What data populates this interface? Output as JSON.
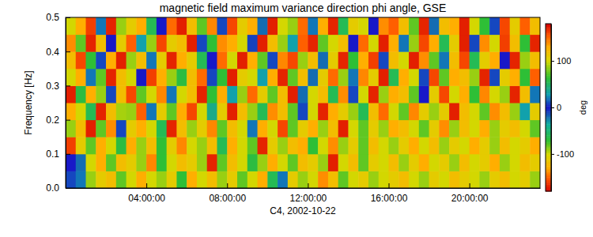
{
  "chart_data": {
    "type": "heatmap",
    "title": "magnetic field maximum variance direction phi angle, GSE",
    "x_label": "C4, 2002-10-22",
    "y_label": "Frequency [Hz]",
    "xlim": [
      0,
      23.5
    ],
    "xticks": [
      {
        "value": 4,
        "label": "04:00:00"
      },
      {
        "value": 8,
        "label": "08:00:00"
      },
      {
        "value": 12,
        "label": "12:00:00"
      },
      {
        "value": 16,
        "label": "16:00:00"
      },
      {
        "value": 20,
        "label": "20:00:00"
      }
    ],
    "ylim": [
      0,
      0.5
    ],
    "yticks": [
      {
        "value": 0,
        "label": "0.0"
      },
      0.1,
      0.2,
      0.3,
      0.4,
      0.5
    ],
    "x": [
      0.25,
      0.75,
      1.25,
      1.75,
      2.25,
      2.75,
      3.25,
      3.75,
      4.25,
      4.75,
      5.25,
      5.75,
      6.25,
      6.75,
      7.25,
      7.75,
      8.25,
      8.75,
      9.25,
      9.75,
      10.25,
      10.75,
      11.25,
      11.75,
      12.25,
      12.75,
      13.25,
      13.75,
      14.25,
      14.75,
      15.25,
      15.75,
      16.25,
      16.75,
      17.25,
      17.75,
      18.25,
      18.75,
      19.25,
      19.75,
      20.25,
      20.75,
      21.25,
      21.75,
      22.25,
      22.75,
      23.25
    ],
    "y": [
      0.025,
      0.075,
      0.125,
      0.175,
      0.225,
      0.275,
      0.325,
      0.375,
      0.425,
      0.475
    ],
    "z": [
      [
        10,
        20,
        -90,
        -110,
        120,
        -80,
        -100,
        -130,
        100,
        -90,
        -110,
        -70,
        130,
        -100,
        -120,
        -90,
        110,
        -80,
        -100,
        -130,
        -60,
        20,
        -110,
        -90,
        -100,
        140,
        -120,
        -80,
        -100,
        -110,
        -90,
        -100,
        -110,
        -120,
        -100,
        -90,
        -110,
        -100,
        -120,
        -110,
        -100,
        -90,
        -110,
        -120,
        -100,
        -110,
        -90
      ],
      [
        0,
        -20,
        -100,
        130,
        -80,
        -120,
        110,
        -90,
        -140,
        -70,
        -100,
        120,
        -110,
        -90,
        170,
        -80,
        -120,
        -100,
        60,
        -90,
        -130,
        -100,
        -80,
        120,
        -110,
        -90,
        -170,
        -100,
        -120,
        -80,
        -110,
        -100,
        -120,
        -90,
        -110,
        -130,
        -100,
        -110,
        -90,
        -120,
        -100,
        -110,
        -130,
        -90,
        -100,
        -120,
        -110
      ],
      [
        -160,
        -110,
        -80,
        130,
        -100,
        60,
        -130,
        -90,
        120,
        -70,
        -110,
        -140,
        100,
        -90,
        -120,
        -60,
        130,
        -100,
        -80,
        170,
        -110,
        -90,
        120,
        -130,
        -70,
        -100,
        140,
        -90,
        -110,
        -80,
        -120,
        -100,
        -90,
        -110,
        -130,
        -100,
        -120,
        -90,
        -110,
        -100,
        -130,
        -110,
        -90,
        -120,
        -100,
        -110,
        -130
      ],
      [
        -90,
        120,
        -170,
        -80,
        140,
        10,
        -110,
        130,
        -100,
        -60,
        170,
        -120,
        -90,
        110,
        -140,
        -80,
        120,
        -100,
        20,
        -130,
        -100,
        160,
        -80,
        -110,
        130,
        -90,
        -120,
        -170,
        100,
        -80,
        -110,
        -90,
        130,
        -120,
        -100,
        -80,
        -110,
        140,
        -90,
        -120,
        -100,
        -130,
        -90,
        -110,
        120,
        -100,
        -80
      ],
      [
        130,
        -100,
        -60,
        170,
        -120,
        90,
        -90,
        -150,
        20,
        110,
        -80,
        -130,
        160,
        -100,
        40,
        -110,
        -170,
        120,
        -90,
        -60,
        140,
        -120,
        -80,
        10,
        -100,
        170,
        -130,
        110,
        -90,
        -60,
        -120,
        150,
        -100,
        -80,
        -140,
        110,
        -90,
        -110,
        -170,
        120,
        -100,
        -80,
        140,
        -120,
        -90,
        30,
        -110
      ],
      [
        -170,
        60,
        130,
        -90,
        10,
        -120,
        160,
        -80,
        100,
        -140,
        20,
        -100,
        120,
        170,
        -70,
        -130,
        30,
        -90,
        150,
        -110,
        -80,
        120,
        -170,
        -20,
        100,
        -120,
        -60,
        140,
        10,
        -100,
        170,
        -90,
        -130,
        120,
        -80,
        0,
        -110,
        160,
        -100,
        130,
        -70,
        -140,
        100,
        -90,
        170,
        -120,
        20
      ],
      [
        100,
        -130,
        20,
        -80,
        170,
        120,
        -100,
        0,
        -160,
        130,
        -90,
        60,
        -120,
        150,
        10,
        -70,
        -170,
        110,
        -100,
        30,
        -130,
        170,
        -80,
        120,
        -20,
        -110,
        150,
        -90,
        20,
        -140,
        110,
        -170,
        -60,
        130,
        -100,
        10,
        160,
        -80,
        -130,
        120,
        -90,
        170,
        10,
        -110,
        130,
        -70,
        -150
      ],
      [
        -120,
        160,
        -70,
        10,
        130,
        -170,
        -90,
        120,
        20,
        -110,
        170,
        -130,
        110,
        -60,
        0,
        150,
        -100,
        -170,
        130,
        -80,
        10,
        -140,
        160,
        -90,
        120,
        -20,
        -110,
        170,
        -70,
        130,
        -160,
        10,
        120,
        -100,
        -170,
        140,
        -80,
        20,
        -120,
        160,
        -60,
        110,
        -130,
        0,
        170,
        -90,
        120
      ],
      [
        140,
        -80,
        170,
        -120,
        0,
        110,
        -150,
        30,
        -90,
        160,
        -110,
        120,
        -170,
        10,
        -70,
        140,
        -130,
        100,
        -10,
        -170,
        120,
        -90,
        30,
        -150,
        170,
        -80,
        100,
        -120,
        0,
        150,
        -100,
        -170,
        130,
        20,
        -90,
        160,
        -130,
        -60,
        110,
        -170,
        10,
        140,
        -100,
        -160,
        120,
        -70,
        170
      ],
      [
        -100,
        130,
        -160,
        20,
        170,
        -90,
        110,
        -130,
        -60,
        0,
        150,
        -170,
        120,
        -80,
        -140,
        10,
        160,
        -110,
        130,
        -20,
        -170,
        100,
        -90,
        150,
        20,
        -130,
        170,
        -60,
        110,
        -100,
        0,
        140,
        -150,
        120,
        -80,
        170,
        -20,
        -120,
        130,
        -170,
        100,
        -70,
        10,
        160,
        -110,
        -150,
        120
      ]
    ],
    "colorbar": {
      "label": "deg",
      "range": [
        -180,
        180
      ],
      "ticks": [
        -100,
        0,
        100
      ]
    }
  }
}
